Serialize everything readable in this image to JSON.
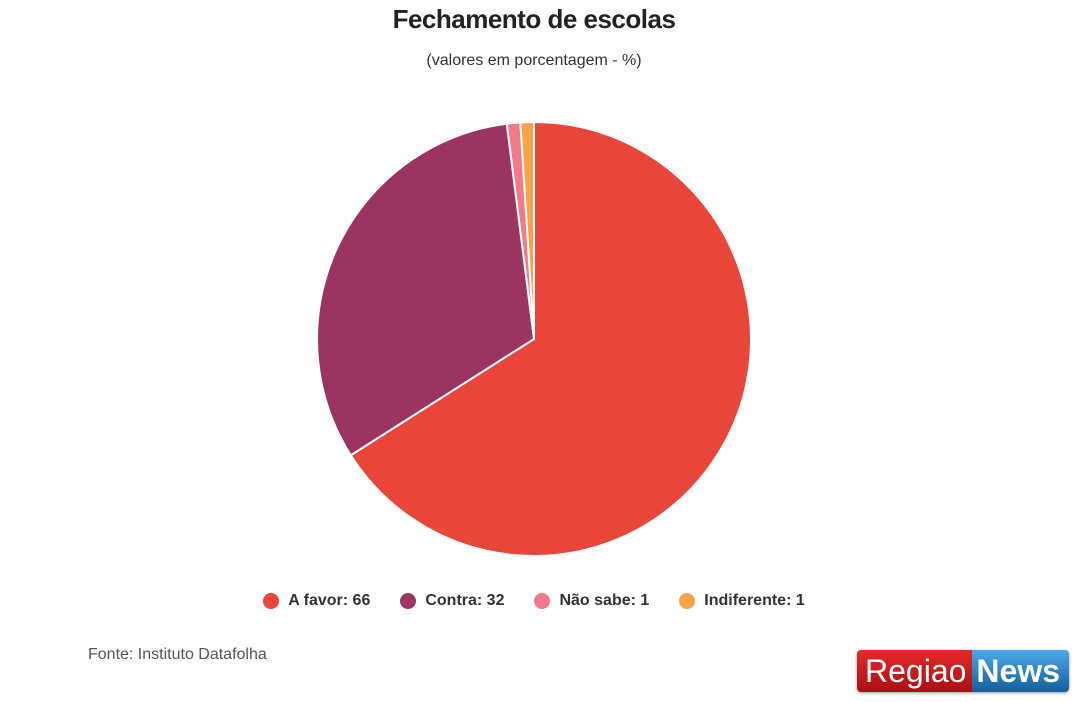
{
  "chart_data": {
    "type": "pie",
    "title": "Fechamento de escolas",
    "subtitle": "(valores em porcentagem - %)",
    "categories": [
      "A favor",
      "Contra",
      "Não sabe",
      "Indiferente"
    ],
    "values": [
      66,
      32,
      1,
      1
    ],
    "colors": [
      "#e8453b",
      "#9c3461",
      "#f07b87",
      "#f9a24a"
    ],
    "legend_position": "bottom",
    "legend_labels": [
      "A favor: 66",
      "Contra: 32",
      "Não sabe: 1",
      "Indiferente: 1"
    ]
  },
  "source": "Fonte: Instituto Datafolha",
  "logo": {
    "text_left": "Regiao",
    "text_right": "News"
  }
}
